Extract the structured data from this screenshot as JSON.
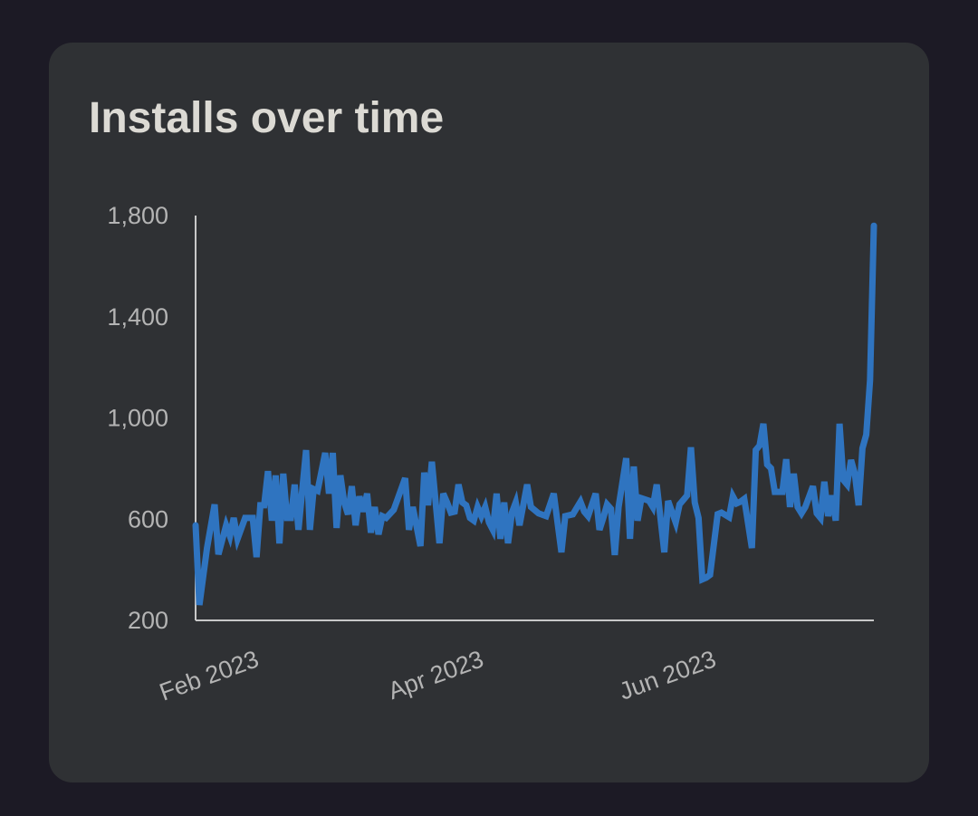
{
  "chart_data": {
    "type": "line",
    "title": "Installs over time",
    "xlabel": "",
    "ylabel": "",
    "ylim": [
      200,
      1800
    ],
    "yticks": [
      200,
      600,
      1000,
      1400,
      1800
    ],
    "ytick_labels": [
      "200",
      "600",
      "1,000",
      "1,400",
      "1,800"
    ],
    "xlim": [
      "2023-01-15",
      "2023-07-12"
    ],
    "xticks": [
      "2023-02-01",
      "2023-04-01",
      "2023-06-01"
    ],
    "xtick_labels": [
      "Feb 2023",
      "Apr 2023",
      "Jun 2023"
    ],
    "grid": false,
    "line_color": "#2f74c0",
    "points": [
      [
        "2023-01-15",
        576
      ],
      [
        "2023-01-16",
        261
      ],
      [
        "2023-01-18",
        486
      ],
      [
        "2023-01-20",
        658
      ],
      [
        "2023-01-21",
        461
      ],
      [
        "2023-01-23",
        576
      ],
      [
        "2023-01-24",
        533
      ],
      [
        "2023-01-25",
        605
      ],
      [
        "2023-01-26",
        522
      ],
      [
        "2023-01-28",
        605
      ],
      [
        "2023-01-30",
        605
      ],
      [
        "2023-01-31",
        450
      ],
      [
        "2023-02-01",
        655
      ],
      [
        "2023-02-02",
        655
      ],
      [
        "2023-02-03",
        790
      ],
      [
        "2023-02-04",
        594
      ],
      [
        "2023-02-05",
        773
      ],
      [
        "2023-02-06",
        504
      ],
      [
        "2023-02-07",
        780
      ],
      [
        "2023-02-08",
        605
      ],
      [
        "2023-02-09",
        605
      ],
      [
        "2023-02-10",
        737
      ],
      [
        "2023-02-11",
        558
      ],
      [
        "2023-02-13",
        873
      ],
      [
        "2023-02-14",
        558
      ],
      [
        "2023-02-15",
        719
      ],
      [
        "2023-02-16",
        712
      ],
      [
        "2023-02-18",
        862
      ],
      [
        "2023-02-19",
        701
      ],
      [
        "2023-02-20",
        862
      ],
      [
        "2023-02-21",
        565
      ],
      [
        "2023-02-22",
        773
      ],
      [
        "2023-02-23",
        666
      ],
      [
        "2023-02-24",
        619
      ],
      [
        "2023-02-25",
        730
      ],
      [
        "2023-02-26",
        576
      ],
      [
        "2023-02-27",
        690
      ],
      [
        "2023-02-28",
        630
      ],
      [
        "2023-03-01",
        701
      ],
      [
        "2023-03-02",
        547
      ],
      [
        "2023-03-03",
        648
      ],
      [
        "2023-03-04",
        540
      ],
      [
        "2023-03-05",
        612
      ],
      [
        "2023-03-06",
        605
      ],
      [
        "2023-03-08",
        637
      ],
      [
        "2023-03-11",
        762
      ],
      [
        "2023-03-12",
        558
      ],
      [
        "2023-03-13",
        648
      ],
      [
        "2023-03-15",
        494
      ],
      [
        "2023-03-16",
        784
      ],
      [
        "2023-03-17",
        655
      ],
      [
        "2023-03-18",
        827
      ],
      [
        "2023-03-20",
        505
      ],
      [
        "2023-03-21",
        701
      ],
      [
        "2023-03-22",
        666
      ],
      [
        "2023-03-23",
        626
      ],
      [
        "2023-03-24",
        630
      ],
      [
        "2023-03-25",
        737
      ],
      [
        "2023-03-26",
        666
      ],
      [
        "2023-03-27",
        655
      ],
      [
        "2023-03-28",
        605
      ],
      [
        "2023-03-29",
        594
      ],
      [
        "2023-03-30",
        648
      ],
      [
        "2023-03-31",
        612
      ],
      [
        "2023-04-01",
        648
      ],
      [
        "2023-04-02",
        587
      ],
      [
        "2023-04-03",
        558
      ],
      [
        "2023-04-04",
        701
      ],
      [
        "2023-04-05",
        522
      ],
      [
        "2023-04-06",
        666
      ],
      [
        "2023-04-07",
        505
      ],
      [
        "2023-04-08",
        626
      ],
      [
        "2023-04-09",
        666
      ],
      [
        "2023-04-10",
        576
      ],
      [
        "2023-04-12",
        737
      ],
      [
        "2023-04-13",
        648
      ],
      [
        "2023-04-15",
        623
      ],
      [
        "2023-04-17",
        612
      ],
      [
        "2023-04-19",
        701
      ],
      [
        "2023-04-21",
        469
      ],
      [
        "2023-04-22",
        612
      ],
      [
        "2023-04-24",
        619
      ],
      [
        "2023-04-26",
        669
      ],
      [
        "2023-04-27",
        630
      ],
      [
        "2023-04-28",
        612
      ],
      [
        "2023-04-30",
        701
      ],
      [
        "2023-05-01",
        558
      ],
      [
        "2023-05-02",
        605
      ],
      [
        "2023-05-03",
        658
      ],
      [
        "2023-05-04",
        641
      ],
      [
        "2023-05-05",
        458
      ],
      [
        "2023-05-06",
        648
      ],
      [
        "2023-05-08",
        841
      ],
      [
        "2023-05-09",
        522
      ],
      [
        "2023-05-10",
        808
      ],
      [
        "2023-05-11",
        594
      ],
      [
        "2023-05-12",
        683
      ],
      [
        "2023-05-14",
        673
      ],
      [
        "2023-05-15",
        648
      ],
      [
        "2023-05-16",
        737
      ],
      [
        "2023-05-18",
        469
      ],
      [
        "2023-05-19",
        672
      ],
      [
        "2023-05-20",
        630
      ],
      [
        "2023-05-21",
        587
      ],
      [
        "2023-05-22",
        658
      ],
      [
        "2023-05-23",
        676
      ],
      [
        "2023-05-24",
        694
      ],
      [
        "2023-05-25",
        884
      ],
      [
        "2023-05-26",
        666
      ],
      [
        "2023-05-27",
        605
      ],
      [
        "2023-05-28",
        362
      ],
      [
        "2023-05-29",
        369
      ],
      [
        "2023-05-30",
        380
      ],
      [
        "2023-06-01",
        620
      ],
      [
        "2023-06-02",
        626
      ],
      [
        "2023-06-04",
        608
      ],
      [
        "2023-06-05",
        690
      ],
      [
        "2023-06-06",
        662
      ],
      [
        "2023-06-07",
        669
      ],
      [
        "2023-06-08",
        680
      ],
      [
        "2023-06-10",
        486
      ],
      [
        "2023-06-11",
        873
      ],
      [
        "2023-06-12",
        891
      ],
      [
        "2023-06-13",
        977
      ],
      [
        "2023-06-14",
        816
      ],
      [
        "2023-06-15",
        801
      ],
      [
        "2023-06-16",
        708
      ],
      [
        "2023-06-18",
        708
      ],
      [
        "2023-06-19",
        837
      ],
      [
        "2023-06-20",
        648
      ],
      [
        "2023-06-21",
        780
      ],
      [
        "2023-06-22",
        648
      ],
      [
        "2023-06-23",
        623
      ],
      [
        "2023-06-24",
        648
      ],
      [
        "2023-06-26",
        730
      ],
      [
        "2023-06-27",
        623
      ],
      [
        "2023-06-28",
        605
      ],
      [
        "2023-06-29",
        748
      ],
      [
        "2023-06-30",
        612
      ],
      [
        "2023-07-01",
        694
      ],
      [
        "2023-07-02",
        594
      ],
      [
        "2023-07-03",
        977
      ],
      [
        "2023-07-04",
        755
      ],
      [
        "2023-07-05",
        737
      ],
      [
        "2023-07-06",
        834
      ],
      [
        "2023-07-07",
        780
      ],
      [
        "2023-07-08",
        655
      ],
      [
        "2023-07-09",
        880
      ],
      [
        "2023-07-10",
        934
      ],
      [
        "2023-07-11",
        1150
      ],
      [
        "2023-07-12",
        1760
      ]
    ]
  }
}
